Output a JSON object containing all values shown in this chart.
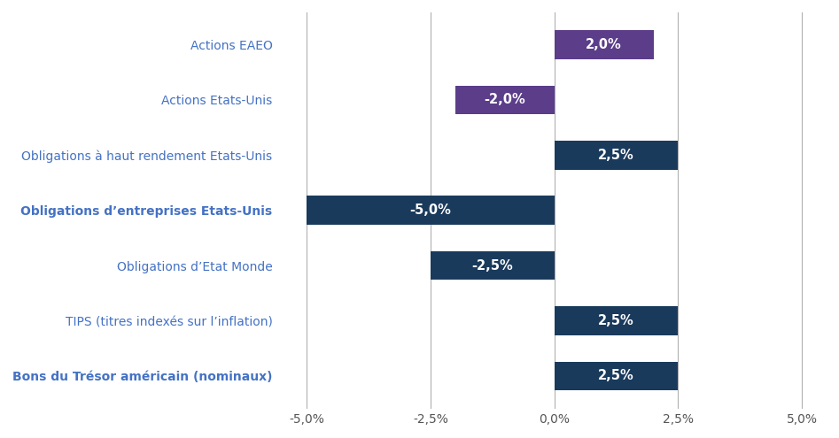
{
  "categories": [
    "Bons du Trésor américain (nominaux)",
    "TIPS (titres indexés sur l’inflation)",
    "Obligations d’Etat Monde",
    "Obligations d’entreprises Etats-Unis",
    "Obligations à haut rendement Etats-Unis",
    "Actions Etats-Unis",
    "Actions EAEO"
  ],
  "values": [
    2.5,
    2.5,
    -2.5,
    -5.0,
    2.5,
    -2.0,
    2.0
  ],
  "bar_colors": [
    "#1a3a5c",
    "#1a3a5c",
    "#1a3a5c",
    "#1a3a5c",
    "#1a3a5c",
    "#5b3d8a",
    "#5b3d8a"
  ],
  "label_fontsize": 10.5,
  "category_fontsize": 10,
  "category_color": "#4472c4",
  "bold_indices": [
    0,
    3
  ],
  "xlim": [
    -5.5,
    5.5
  ],
  "xticks": [
    -5.0,
    -2.5,
    0.0,
    2.5,
    5.0
  ],
  "xtick_labels": [
    "-5,0%",
    "-2,5%",
    "0,0%",
    "2,5%",
    "5,0%"
  ],
  "grid_color": "#b0b0b0",
  "background_color": "#ffffff",
  "bar_height": 0.52
}
